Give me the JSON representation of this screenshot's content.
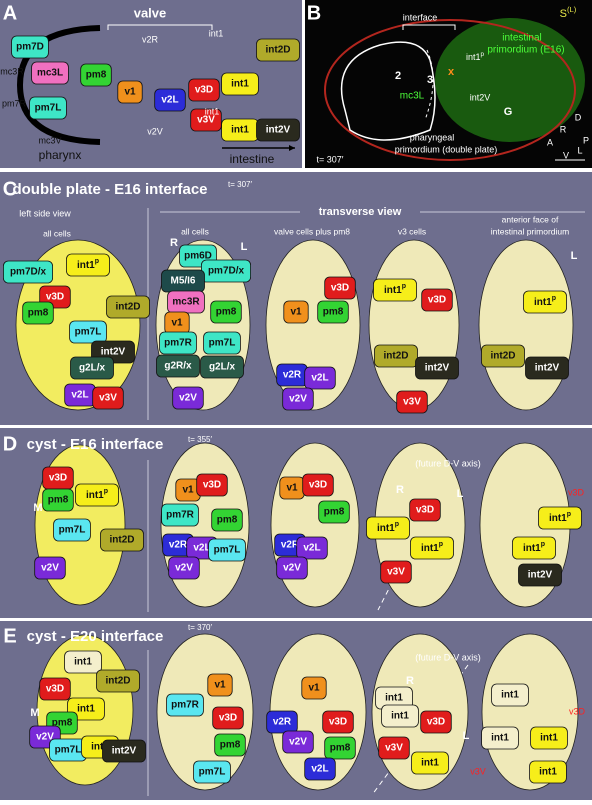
{
  "panel_a": {
    "texts": [
      "A",
      "valve",
      "pm7D",
      "mc3R",
      "mc3L",
      "pm8",
      "pm7R",
      "pm7L",
      "mc3V",
      "pharynx",
      "v2R",
      "v1",
      "v2L",
      "v3D",
      "v2V",
      "v3V",
      "int1",
      "int1",
      "int2D",
      "int1",
      "int1",
      "int2V",
      "intestine"
    ]
  },
  "panel_b": {
    "texts": [
      "B",
      {
        "text": "S",
        "sup": "(L)"
      },
      "interface",
      "intestinal",
      "primordium (E16)",
      {
        "text": "int1",
        "sup": "p"
      },
      "2",
      "3",
      "x",
      "mc3L",
      "int2V",
      "G",
      "D",
      "R",
      "A",
      "P",
      "V",
      "L",
      "t= 307′",
      "pharyngeal",
      "primordium (double plate)"
    ]
  },
  "panel_c": {
    "texts": [
      "C",
      "double plate - E16 interface",
      "t= 307′",
      "left side view",
      "transverse view",
      "all cells",
      "all cells",
      "valve cells plus pm8",
      "v3 cells",
      "anterior face of",
      "intestinal primordium",
      "pm7D/x",
      {
        "text": "int1",
        "sup": "p"
      },
      "v3D",
      "pm8",
      "int2D",
      "pm7L",
      "int2V",
      "g2L/x",
      "v2L",
      "v3V",
      "R",
      "L",
      "pm6D",
      "pm7D/x",
      "M5/I6",
      "mc3R",
      "pm8",
      "v1",
      "pm7R",
      "pm7L",
      "g2R/x",
      "g2L/x",
      "v2V",
      "v3D",
      "v1",
      "pm8",
      "v2R",
      "v2L",
      "v2V",
      {
        "text": "int1",
        "sup": "p"
      },
      "v3D",
      "int2D",
      "int2V",
      "v3V",
      "L",
      {
        "text": "int1",
        "sup": "p"
      },
      "int2D",
      "int2V"
    ]
  },
  "panel_d": {
    "texts": [
      "D",
      "cyst - E16 interface",
      "t= 355′",
      "v3D",
      "pm8",
      {
        "text": "int1",
        "sup": "p"
      },
      "M",
      "pm7L",
      "int2D",
      "v2V",
      "v1",
      "v3D",
      "pm7R",
      "pm8",
      "v2R",
      "v2L",
      "pm7L",
      "v2V",
      "v1",
      "v3D",
      "pm8",
      "v2R",
      "v2L",
      "v2V",
      "(future D-V axis)",
      "R",
      "L",
      "v3D",
      {
        "text": "int1",
        "sup": "p"
      },
      {
        "text": "int1",
        "sup": "p"
      },
      "v3V",
      "v3D",
      {
        "text": "int1",
        "sup": "p"
      },
      {
        "text": "int1",
        "sup": "p"
      },
      "int2V"
    ]
  },
  "panel_e": {
    "texts": [
      "E",
      "cyst - E20 interface",
      "t= 370′",
      "int1",
      "int2D",
      "v3D",
      "int1",
      "M",
      "pm8",
      "v2V",
      "pm7L",
      "int1",
      "int2V",
      "v1",
      "pm7R",
      "v3D",
      "pm8",
      "pm7L",
      "v1",
      "v2R",
      "v3D",
      "v2V",
      "pm8",
      "v2L",
      "(future D-V axis)",
      "R",
      "int1",
      "int1",
      "v3D",
      "L",
      "v3V",
      "int1",
      "int1",
      "v3D",
      "int1",
      "int1",
      "v3V",
      "int1"
    ]
  }
}
